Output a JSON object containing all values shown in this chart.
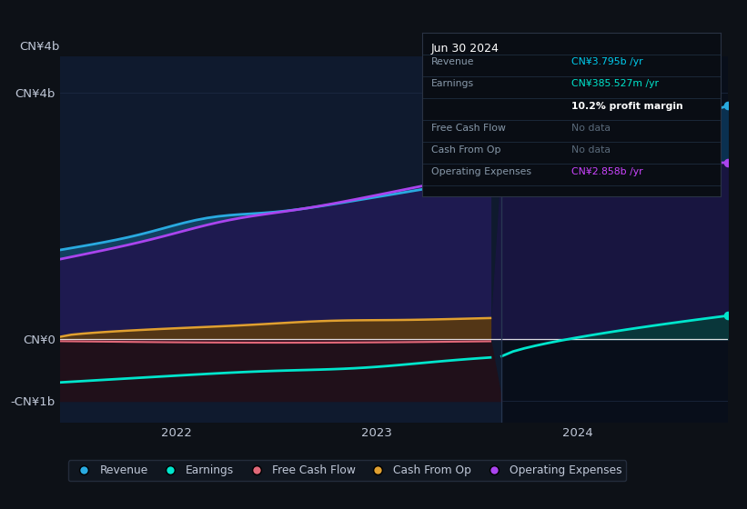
{
  "bg_color": "#0d1117",
  "plot_bg_left": "#0f1a2e",
  "plot_bg_right": "#0a1020",
  "axis_label_color": "#c0c8d8",
  "grid_color": "#1e2d45",
  "zero_line_color": "#ffffff",
  "title_box_bg": "#090d14",
  "title_box_border": "#2a3344",
  "title_box": {
    "date": "Jun 30 2024",
    "rows": [
      {
        "label": "Revenue",
        "value": "CN¥3.795b /yr",
        "value_color": "#00ccee",
        "nodata": false
      },
      {
        "label": "Earnings",
        "value": "CN¥385.527m /yr",
        "value_color": "#00e5cc",
        "nodata": false
      },
      {
        "label": "",
        "value": "10.2% profit margin",
        "value_color": "#ffffff",
        "bold": true
      },
      {
        "label": "Free Cash Flow",
        "value": "No data",
        "value_color": "#5a6a7a",
        "nodata": true
      },
      {
        "label": "Cash From Op",
        "value": "No data",
        "value_color": "#5a6a7a",
        "nodata": true
      },
      {
        "label": "Operating Expenses",
        "value": "CN¥2.858b /yr",
        "value_color": "#cc44ff",
        "nodata": false
      }
    ]
  },
  "yticks": [
    "CN¥4b",
    "CN¥0",
    "-CN¥1b"
  ],
  "ytick_vals": [
    4000000000,
    0,
    -1000000000
  ],
  "ylim": [
    -1350000000,
    4600000000
  ],
  "xlim_start": 2021.42,
  "xlim_end": 2024.75,
  "divider_x": 2023.62,
  "xtick_positions": [
    2022,
    2023,
    2024
  ],
  "xtick_labels": [
    "2022",
    "2023",
    "2024"
  ],
  "legend_items": [
    {
      "label": "Revenue",
      "color": "#29aae0"
    },
    {
      "label": "Earnings",
      "color": "#00e5cc"
    },
    {
      "label": "Free Cash Flow",
      "color": "#e06878"
    },
    {
      "label": "Cash From Op",
      "color": "#e0a030"
    },
    {
      "label": "Operating Expenses",
      "color": "#aa44ee"
    }
  ],
  "revenue_color": "#29aae0",
  "earnings_color": "#00e5cc",
  "fcf_color": "#e06878",
  "cash_op_color": "#e0a030",
  "op_exp_color": "#aa44ee",
  "n_points": 60,
  "x_start": 2021.42,
  "x_end": 2024.75
}
